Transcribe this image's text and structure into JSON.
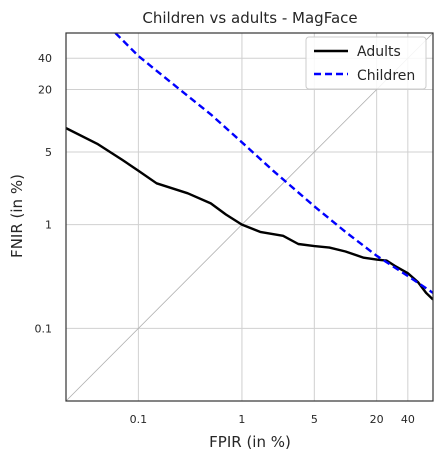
{
  "chart_data": {
    "type": "line",
    "title": "Children vs adults - MagFace",
    "xlabel": "FPIR (in %)",
    "ylabel": "FNIR (in %)",
    "xscale": "log",
    "yscale": "log",
    "xlim": [
      0.02,
      70
    ],
    "ylim": [
      0.02,
      70
    ],
    "xticks": [
      0.1,
      1,
      5,
      20,
      40
    ],
    "xtick_labels": [
      "0.1",
      "1",
      "5",
      "20",
      "40"
    ],
    "yticks": [
      0.1,
      1,
      5,
      20,
      40
    ],
    "ytick_labels": [
      "0.1",
      "1",
      "5",
      "20",
      "40"
    ],
    "grid": true,
    "legend_position": "top-right",
    "diagonal_reference": true,
    "series": [
      {
        "name": "Adults",
        "color": "#000000",
        "dash": "solid",
        "x": [
          0.02,
          0.04,
          0.07,
          0.1,
          0.15,
          0.3,
          0.5,
          0.7,
          1,
          1.5,
          2.5,
          3.5,
          5,
          7,
          10,
          15,
          20,
          25,
          30,
          40,
          50,
          60,
          70
        ],
        "y": [
          8.5,
          6,
          4.2,
          3.3,
          2.5,
          2.0,
          1.6,
          1.25,
          1.0,
          0.85,
          0.78,
          0.65,
          0.62,
          0.6,
          0.55,
          0.48,
          0.46,
          0.45,
          0.4,
          0.34,
          0.28,
          0.22,
          0.19
        ]
      },
      {
        "name": "Children",
        "color": "#0000ff",
        "dash": "dashed",
        "x": [
          0.06,
          0.1,
          0.2,
          0.5,
          1,
          2,
          5,
          10,
          20,
          40,
          70
        ],
        "y": [
          70,
          42,
          24,
          11.5,
          6.2,
          3.3,
          1.5,
          0.85,
          0.5,
          0.32,
          0.22
        ]
      }
    ]
  }
}
